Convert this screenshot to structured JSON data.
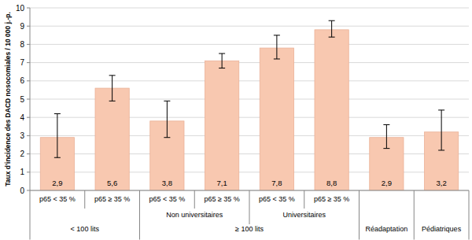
{
  "chart_data": {
    "type": "bar",
    "y_label": "Taux d'incidence des DACD nosocomiales / 10 000 j.-p.",
    "categories": [
      "p65 < 35 %",
      "p65 ≥ 35 %",
      "p65 < 35 %",
      "p65 ≥ 35 %",
      "p65 < 35 %",
      "p65 ≥ 35 %",
      null,
      null
    ],
    "values": [
      2.9,
      5.6,
      3.8,
      7.1,
      7.8,
      8.8,
      2.9,
      3.2
    ],
    "value_labels": [
      "2,9",
      "5,6",
      "3,8",
      "7,1",
      "7,8",
      "8,8",
      "2,9",
      "3,2"
    ],
    "error_low": [
      1.8,
      4.9,
      2.9,
      6.7,
      7.2,
      8.4,
      2.3,
      2.2
    ],
    "error_high": [
      4.2,
      6.3,
      4.9,
      7.5,
      8.5,
      9.3,
      3.6,
      4.4
    ],
    "category_groups": [
      [
        {
          "label": null,
          "span": 2
        },
        {
          "label": "Non universitaires",
          "span": 2
        },
        {
          "label": "Universitaires",
          "span": 2
        },
        {
          "label": null,
          "span": 1
        },
        {
          "label": null,
          "span": 1
        }
      ],
      [
        {
          "label": "< 100 lits",
          "span": 2
        },
        {
          "label": "≥ 100 lits",
          "span": 4
        },
        {
          "label": "Réadaptation",
          "span": 1
        },
        {
          "label": "Pédiatriques",
          "span": 1
        }
      ]
    ],
    "color": "#f8c8b0",
    "ylim": [
      0,
      10
    ],
    "yticks": [
      0,
      1,
      2,
      3,
      4,
      5,
      6,
      7,
      8,
      9,
      10
    ],
    "grid": true,
    "data_labels": true
  }
}
